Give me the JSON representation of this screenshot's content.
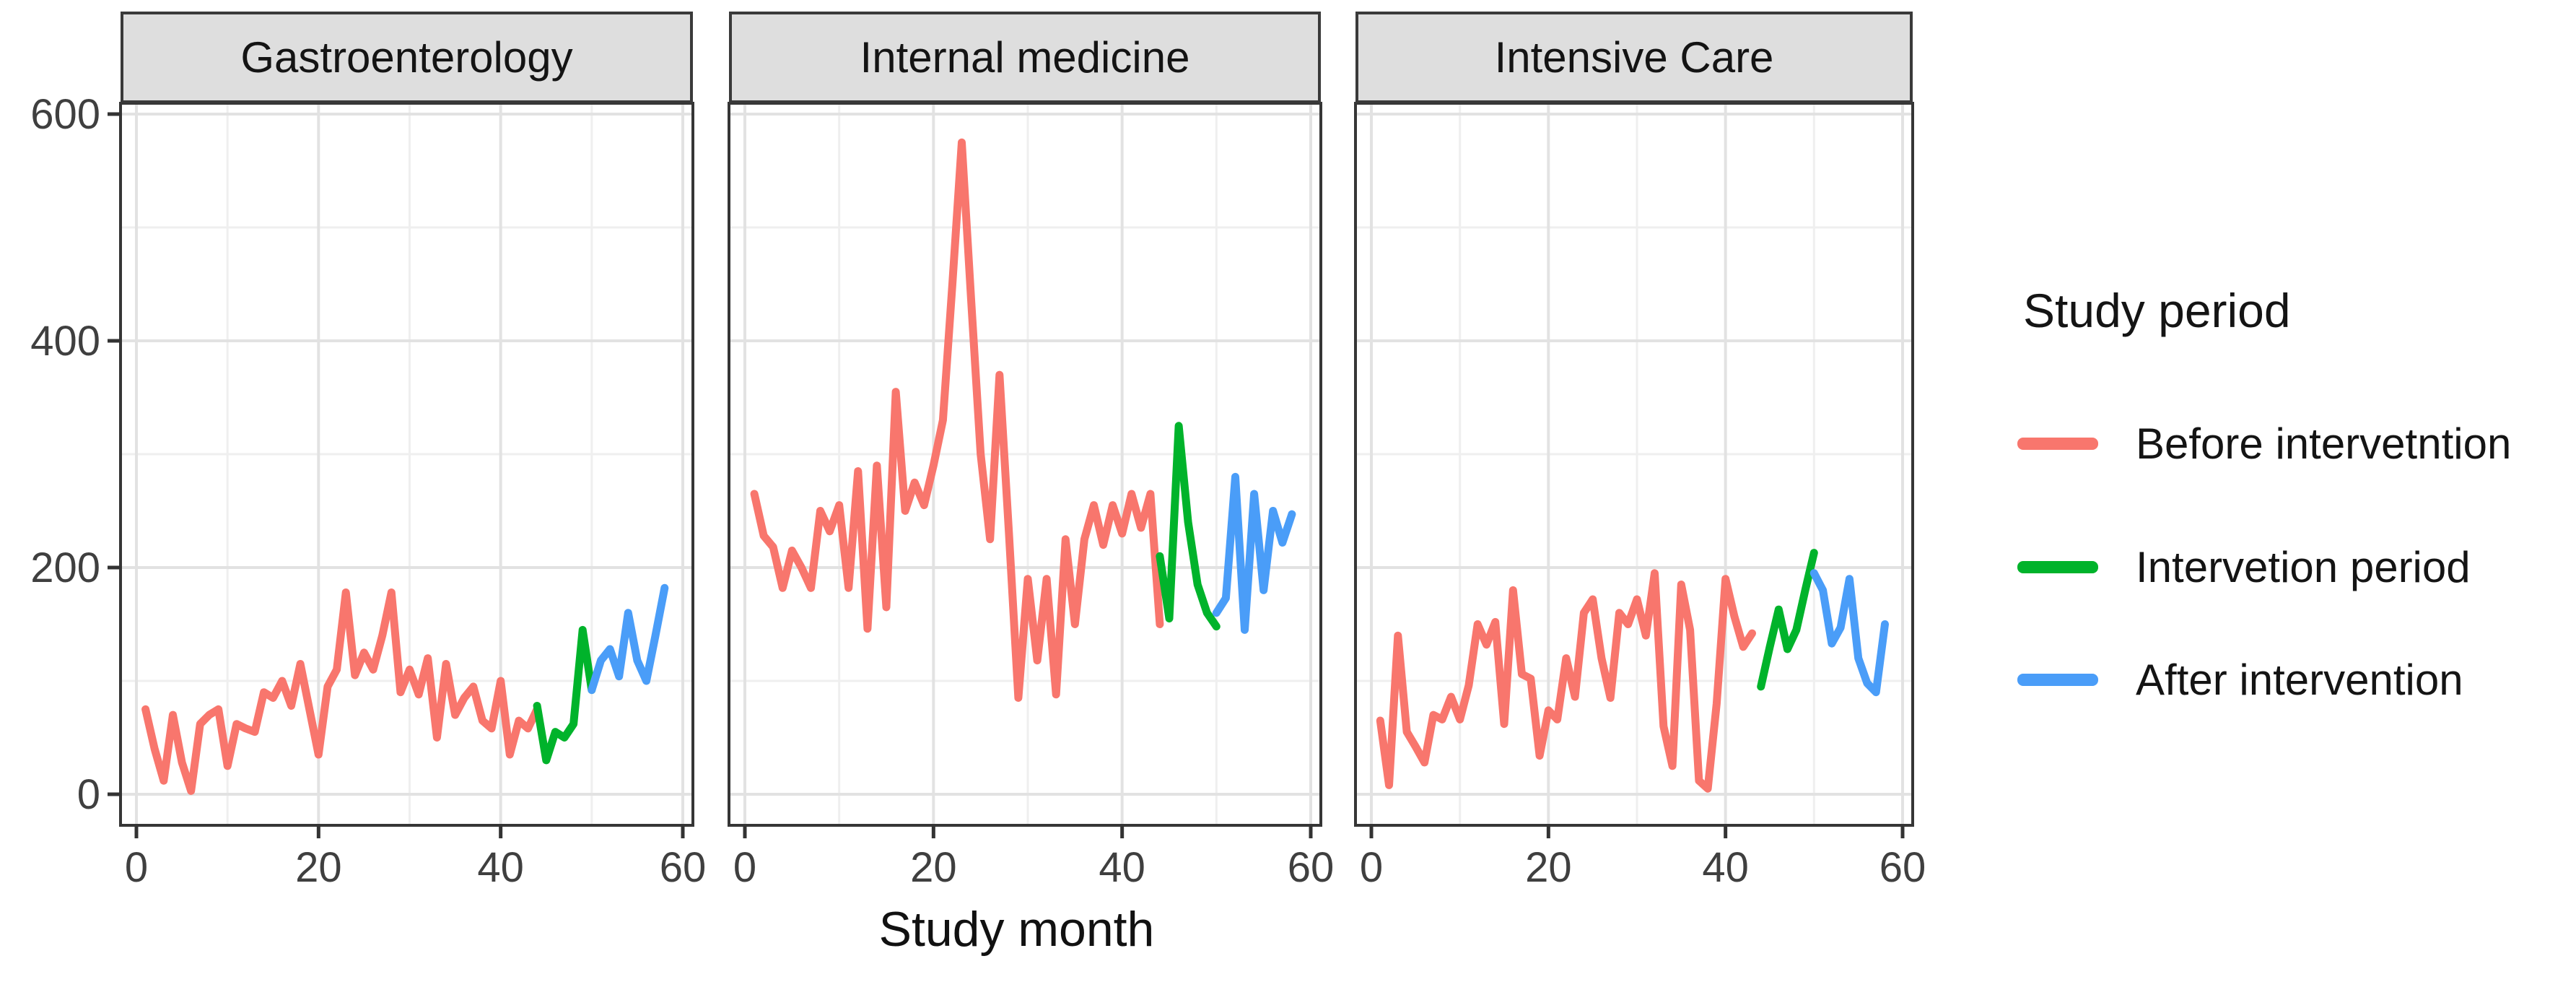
{
  "figure": {
    "x_axis_title": "Study month",
    "colors": {
      "strip_bg": "#DEDEDE",
      "panel_border": "#363636",
      "grid_major": "#E2E2E2",
      "grid_minor": "#EFEFEF",
      "tick_mark": "#333333",
      "tick_text": "#3F3F3F"
    }
  },
  "legend": {
    "title": "Study period",
    "items": [
      {
        "key": "before",
        "label": "Before intervetntion",
        "color": "#F8766D"
      },
      {
        "key": "during",
        "label": "Intervetion period",
        "color": "#00B32B"
      },
      {
        "key": "after",
        "label": "After intervention",
        "color": "#4A9DF8"
      }
    ]
  },
  "chart_data": {
    "type": "line",
    "title": "",
    "xlabel": "Study month",
    "ylabel": "",
    "legend_position": "right",
    "grid": true,
    "x_ticks": [
      0,
      20,
      40,
      60
    ],
    "x_minor": [
      10,
      30,
      50
    ],
    "y_ticks": [
      0,
      200,
      400,
      600
    ],
    "y_minor": [
      100,
      300,
      500
    ],
    "xlim": [
      -1.7,
      61.5
    ],
    "ylim": [
      -27,
      610
    ],
    "facets": [
      {
        "title": "Gastroenterology",
        "series": [
          {
            "key": "before",
            "name": "Before intervetntion",
            "x_start": 1,
            "values": [
              75,
              40,
              12,
              70,
              28,
              3,
              62,
              70,
              75,
              25,
              62,
              58,
              55,
              90,
              85,
              100,
              78,
              115,
              75,
              35,
              95,
              110,
              178,
              105,
              125,
              110,
              140,
              178,
              90,
              110,
              88,
              120,
              50,
              115,
              70,
              85,
              95,
              65,
              58,
              100,
              35,
              65,
              58,
              75
            ]
          },
          {
            "key": "during",
            "name": "Intervetion period",
            "x_start": 44,
            "values": [
              78,
              30,
              55,
              50,
              62,
              145,
              92
            ]
          },
          {
            "key": "after",
            "name": "After intervention",
            "x_start": 50,
            "values": [
              92,
              118,
              128,
              104,
              160,
              118,
              100,
              140,
              182
            ]
          }
        ]
      },
      {
        "title": "Internal medicine",
        "series": [
          {
            "key": "before",
            "name": "Before intervetntion",
            "x_start": 1,
            "values": [
              265,
              228,
              218,
              182,
              215,
              200,
              182,
              250,
              232,
              255,
              182,
              285,
              146,
              290,
              165,
              355,
              250,
              275,
              255,
              290,
              330,
              450,
              575,
              435,
              300,
              225,
              370,
              230,
              85,
              190,
              118,
              190,
              88,
              225,
              150,
              225,
              255,
              220,
              255,
              230,
              265,
              235,
              265,
              150
            ]
          },
          {
            "key": "during",
            "name": "Intervetion period",
            "x_start": 44,
            "values": [
              210,
              155,
              325,
              240,
              185,
              160,
              148
            ]
          },
          {
            "key": "after",
            "name": "After intervention",
            "x_start": 50,
            "values": [
              160,
              173,
              280,
              145,
              265,
              180,
              250,
              222,
              247
            ]
          }
        ]
      },
      {
        "title": "Intensive Care",
        "series": [
          {
            "key": "before",
            "name": "Before intervetntion",
            "x_start": 1,
            "values": [
              65,
              8,
              140,
              55,
              42,
              28,
              70,
              66,
              86,
              66,
              96,
              150,
              132,
              152,
              62,
              180,
              106,
              102,
              34,
              74,
              66,
              120,
              86,
              160,
              172,
              120,
              85,
              160,
              150,
              172,
              140,
              195,
              60,
              25,
              185,
              145,
              12,
              5,
              80,
              190,
              157,
              130,
              142
            ]
          },
          {
            "key": "during",
            "name": "Intervetion period",
            "x_start": 44,
            "values": [
              95,
              130,
              163,
              128,
              145,
              180,
              213
            ]
          },
          {
            "key": "after",
            "name": "After intervention",
            "x_start": 50,
            "values": [
              195,
              180,
              133,
              147,
              190,
              120,
              98,
              90,
              150
            ]
          }
        ]
      }
    ]
  }
}
